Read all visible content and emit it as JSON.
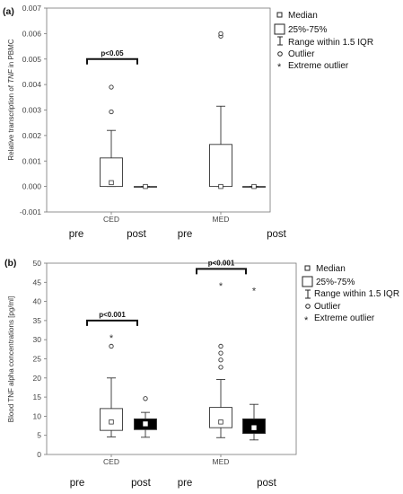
{
  "chart_data": [
    {
      "panel": "(a)",
      "type": "box",
      "ylabel_prefix": "Relative transcription of ",
      "ylabel_italic": "TNF",
      "ylabel_suffix": " in PBMC",
      "ylim": [
        -0.001,
        0.007
      ],
      "yticks": [
        "-0.001",
        "0.000",
        "0.001",
        "0.002",
        "0.003",
        "0.004",
        "0.005",
        "0.006",
        "0.007"
      ],
      "ytick_values": [
        -0.001,
        0,
        0.001,
        0.002,
        0.003,
        0.004,
        0.005,
        0.006,
        0.007
      ],
      "categories": [
        "CED",
        "MED"
      ],
      "sublabels": [
        "pre",
        "post",
        "pre",
        "post"
      ],
      "series": [
        {
          "group": "CED",
          "sub": "pre",
          "median": 0.00015,
          "q1": 0.0,
          "q3": 0.00112,
          "wlo": 0.0,
          "whi": 0.0022,
          "outliers": [
            0.00293,
            0.0039
          ],
          "extremes": [],
          "fill": "#ffffff"
        },
        {
          "group": "CED",
          "sub": "post",
          "median": 0.0,
          "q1": 0.0,
          "q3": 0.0,
          "wlo": 0.0,
          "whi": 0.0,
          "outliers": [],
          "extremes": [],
          "fill": "#ffffff"
        },
        {
          "group": "MED",
          "sub": "pre",
          "median": 0.0,
          "q1": 0.0,
          "q3": 0.00165,
          "wlo": 0.0,
          "whi": 0.00315,
          "outliers": [
            0.0059,
            0.006
          ],
          "extremes": [],
          "fill": "#ffffff"
        },
        {
          "group": "MED",
          "sub": "post",
          "median": 0.0,
          "q1": 0.0,
          "q3": 0.0,
          "wlo": 0.0,
          "whi": 0.0,
          "outliers": [],
          "extremes": [],
          "fill": "#ffffff"
        }
      ],
      "significance": [
        {
          "label": "p<0.05",
          "pair": [
            0,
            1
          ],
          "y": 0.005
        }
      ],
      "legend": [
        "Median",
        "25%-75%",
        "Range within 1.5 IQR",
        "Outlier",
        "Extreme outlier"
      ]
    },
    {
      "panel": "(b)",
      "type": "box",
      "ylabel": "Blood TNF alpha concentrations [pg/ml]",
      "ylim": [
        0,
        50
      ],
      "yticks": [
        "0",
        "5",
        "10",
        "15",
        "20",
        "25",
        "30",
        "35",
        "40",
        "45",
        "50"
      ],
      "ytick_values": [
        0,
        5,
        10,
        15,
        20,
        25,
        30,
        35,
        40,
        45,
        50
      ],
      "categories": [
        "CED",
        "MED"
      ],
      "sublabels": [
        "pre",
        "post",
        "pre",
        "post"
      ],
      "series": [
        {
          "group": "CED",
          "sub": "pre",
          "median": 8.5,
          "q1": 6.3,
          "q3": 12.0,
          "wlo": 4.6,
          "whi": 20.0,
          "outliers": [
            28.3
          ],
          "extremes": [
            30.6
          ],
          "fill": "#ffffff"
        },
        {
          "group": "CED",
          "sub": "post",
          "median": 8.0,
          "q1": 6.5,
          "q3": 9.3,
          "wlo": 4.5,
          "whi": 11.0,
          "outliers": [
            14.6
          ],
          "extremes": [],
          "fill": "#000000"
        },
        {
          "group": "MED",
          "sub": "pre",
          "median": 8.5,
          "q1": 7.0,
          "q3": 12.3,
          "wlo": 4.4,
          "whi": 19.6,
          "outliers": [
            22.8,
            24.7,
            26.5,
            28.3
          ],
          "extremes": [
            44.3
          ],
          "fill": "#ffffff"
        },
        {
          "group": "MED",
          "sub": "post",
          "median": 7.0,
          "q1": 5.5,
          "q3": 9.3,
          "wlo": 3.8,
          "whi": 13.1,
          "outliers": [],
          "extremes": [
            43.0
          ],
          "fill": "#000000"
        }
      ],
      "significance": [
        {
          "label": "p<0.001",
          "pair": [
            0,
            1
          ],
          "y": 35
        },
        {
          "label": "p<0.001",
          "pair": [
            2,
            3
          ],
          "y": 48.5
        }
      ],
      "legend": [
        "Median",
        "25%-75%",
        "Range within 1.5 IQR",
        "Outlier",
        "Extreme outlier"
      ]
    }
  ]
}
